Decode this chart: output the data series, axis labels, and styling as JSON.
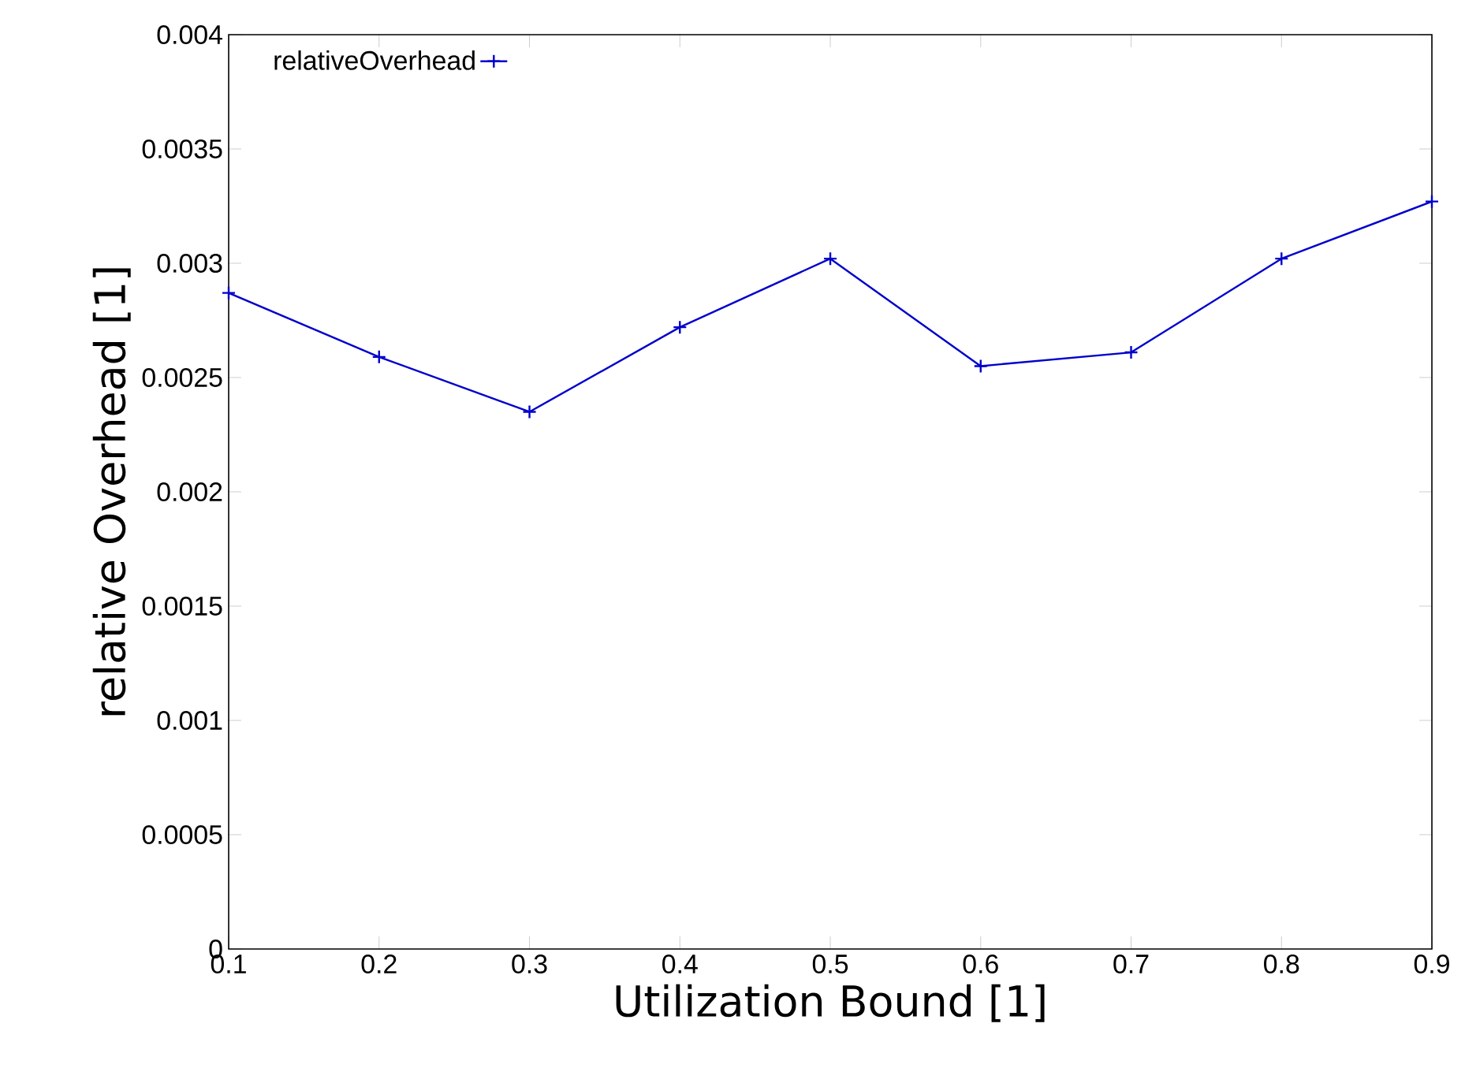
{
  "chart_data": {
    "type": "line",
    "xlabel": "Utilization Bound [1]",
    "ylabel": "relative Overhead [1]",
    "x": [
      0.1,
      0.2,
      0.3,
      0.4,
      0.5,
      0.6,
      0.7,
      0.8,
      0.9
    ],
    "series": [
      {
        "name": "relativeOverhead",
        "color": "#0000cc",
        "values": [
          0.00287,
          0.00259,
          0.00235,
          0.00272,
          0.00302,
          0.00255,
          0.00261,
          0.00302,
          0.00327
        ]
      }
    ],
    "xlim": [
      0.1,
      0.9
    ],
    "ylim": [
      0,
      0.004
    ],
    "xticks": [
      0.1,
      0.2,
      0.3,
      0.4,
      0.5,
      0.6,
      0.7,
      0.8,
      0.9
    ],
    "yticks": [
      0,
      0.0005,
      0.001,
      0.0015,
      0.002,
      0.0025,
      0.003,
      0.0035,
      0.004
    ],
    "grid": false,
    "legend": "top left",
    "marker": "cross",
    "line_style": "solid"
  }
}
